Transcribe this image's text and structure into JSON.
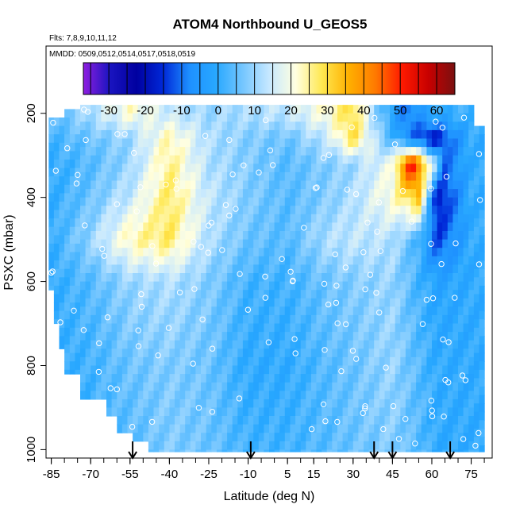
{
  "chart_data": {
    "type": "heatmap",
    "title": "ATOM4 Northbound U_GEOS5",
    "subtitle": "Flts: 7,8,9,10,11,12",
    "annotation": "MMDD: 0509,0512,0514,0517,0518,0519",
    "xlabel": "Latitude (deg N)",
    "ylabel": "PSXC (mbar)",
    "xlim": [
      -87,
      83
    ],
    "ylim": [
      1020,
      40
    ],
    "x_ticks": [
      -85,
      -70,
      -55,
      -40,
      -25,
      -10,
      5,
      15,
      30,
      45,
      60,
      75
    ],
    "y_ticks": [
      200,
      400,
      600,
      800,
      1000
    ],
    "colorbar": {
      "min": -37,
      "max": 65,
      "ticks": [
        -30,
        -20,
        -10,
        0,
        10,
        20,
        30,
        40,
        50,
        60
      ],
      "colors": [
        "#8f1ee0",
        "#1a14c0",
        "#0000a0",
        "#0028d8",
        "#1e90ff",
        "#28a8ff",
        "#74c6ff",
        "#c6e8ff",
        "#ffffe0",
        "#ffe850",
        "#ffb000",
        "#ff7a00",
        "#ff1a00",
        "#c80000",
        "#7a1010"
      ]
    },
    "flight_arrows_latitude": [
      -54,
      -9,
      38,
      45,
      67
    ],
    "description_rows": [
      {
        "p": 200,
        "profile": [
          [
            -86,
            4
          ],
          [
            -70,
            12
          ],
          [
            -55,
            22
          ],
          [
            -40,
            14
          ],
          [
            -25,
            10
          ],
          [
            -10,
            12
          ],
          [
            5,
            14
          ],
          [
            20,
            22
          ],
          [
            30,
            30
          ],
          [
            40,
            6
          ],
          [
            50,
            -10
          ],
          [
            60,
            0
          ],
          [
            75,
            2
          ]
        ]
      },
      {
        "p": 260,
        "profile": [
          [
            -86,
            2
          ],
          [
            -70,
            6
          ],
          [
            -55,
            10
          ],
          [
            -40,
            24
          ],
          [
            -25,
            12
          ],
          [
            -10,
            8
          ],
          [
            5,
            6
          ],
          [
            20,
            14
          ],
          [
            30,
            30
          ],
          [
            40,
            10
          ],
          [
            50,
            -6
          ],
          [
            60,
            -20
          ],
          [
            75,
            0
          ]
        ]
      },
      {
        "p": 320,
        "profile": [
          [
            -86,
            0
          ],
          [
            -70,
            4
          ],
          [
            -55,
            10
          ],
          [
            -40,
            26
          ],
          [
            -25,
            12
          ],
          [
            -10,
            8
          ],
          [
            5,
            4
          ],
          [
            20,
            8
          ],
          [
            30,
            10
          ],
          [
            45,
            20
          ],
          [
            52,
            55
          ],
          [
            58,
            30
          ],
          [
            65,
            -10
          ],
          [
            75,
            0
          ]
        ]
      },
      {
        "p": 400,
        "profile": [
          [
            -86,
            0
          ],
          [
            -70,
            6
          ],
          [
            -55,
            14
          ],
          [
            -40,
            28
          ],
          [
            -25,
            14
          ],
          [
            -10,
            8
          ],
          [
            5,
            4
          ],
          [
            20,
            8
          ],
          [
            30,
            12
          ],
          [
            45,
            22
          ],
          [
            55,
            34
          ],
          [
            62,
            -20
          ],
          [
            75,
            0
          ]
        ]
      },
      {
        "p": 500,
        "profile": [
          [
            -86,
            0
          ],
          [
            -70,
            10
          ],
          [
            -55,
            24
          ],
          [
            -40,
            28
          ],
          [
            -25,
            12
          ],
          [
            -10,
            6
          ],
          [
            5,
            4
          ],
          [
            20,
            12
          ],
          [
            30,
            14
          ],
          [
            45,
            12
          ],
          [
            55,
            2
          ],
          [
            62,
            -14
          ],
          [
            75,
            0
          ]
        ]
      },
      {
        "p": 600,
        "profile": [
          [
            -86,
            0
          ],
          [
            -70,
            4
          ],
          [
            -55,
            10
          ],
          [
            -40,
            12
          ],
          [
            -25,
            8
          ],
          [
            -10,
            2
          ],
          [
            5,
            2
          ],
          [
            20,
            6
          ],
          [
            30,
            8
          ],
          [
            45,
            10
          ],
          [
            55,
            2
          ],
          [
            62,
            -2
          ],
          [
            75,
            0
          ]
        ]
      },
      {
        "p": 800,
        "profile": [
          [
            -86,
            0
          ],
          [
            -70,
            2
          ],
          [
            -55,
            6
          ],
          [
            -40,
            8
          ],
          [
            -25,
            6
          ],
          [
            -10,
            0
          ],
          [
            5,
            0
          ],
          [
            20,
            4
          ],
          [
            30,
            6
          ],
          [
            45,
            10
          ],
          [
            55,
            4
          ],
          [
            62,
            0
          ],
          [
            75,
            0
          ]
        ]
      },
      {
        "p": 1000,
        "profile": [
          [
            -86,
            0
          ],
          [
            -70,
            2
          ],
          [
            -55,
            4
          ],
          [
            -40,
            8
          ],
          [
            -25,
            6
          ],
          [
            -10,
            2
          ],
          [
            5,
            2
          ],
          [
            20,
            4
          ],
          [
            30,
            6
          ],
          [
            45,
            8
          ],
          [
            55,
            4
          ],
          [
            62,
            0
          ],
          [
            75,
            0
          ]
        ]
      }
    ]
  }
}
